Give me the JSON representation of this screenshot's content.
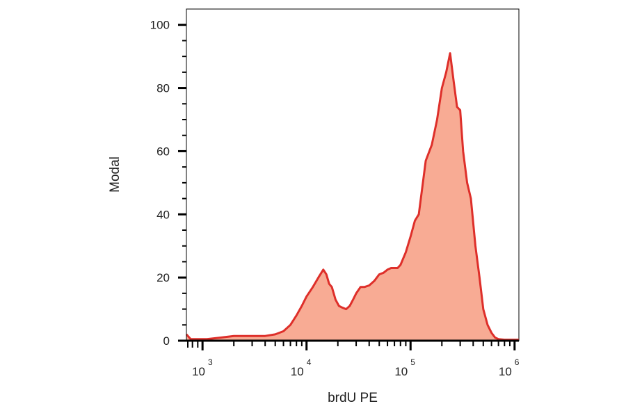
{
  "chart_data": {
    "type": "area",
    "xlabel": "brdU PE",
    "ylabel": "Modal",
    "x_scale": "log",
    "xlim": [
      700,
      1100000
    ],
    "ylim": [
      0,
      105
    ],
    "x_ticks": [
      {
        "base": "10",
        "exp": "3"
      },
      {
        "base": "10",
        "exp": "4"
      },
      {
        "base": "10",
        "exp": "5"
      },
      {
        "base": "10",
        "exp": "6"
      }
    ],
    "y_ticks": [
      "0",
      "20",
      "40",
      "60",
      "80",
      "100"
    ],
    "colors": {
      "fill": "#f8ab94",
      "line": "#de2f2a",
      "axis": "#000000"
    },
    "series": [
      {
        "x": [
          700,
          770,
          900,
          1100,
          1500,
          2000,
          2600,
          3000,
          4000,
          5000,
          6000,
          7000,
          8000,
          9000,
          10000,
          11500,
          13000,
          14500,
          15500,
          16500,
          17500,
          19000,
          20500,
          22000,
          24000,
          26000,
          28000,
          30000,
          33000,
          36000,
          40000,
          45000,
          50000,
          55000,
          60000,
          65000,
          70000,
          75000,
          80000,
          90000,
          100000,
          110000,
          120000,
          140000,
          160000,
          180000,
          200000,
          220000,
          240000,
          260000,
          280000,
          300000,
          320000,
          350000,
          380000,
          420000,
          460000,
          500000,
          550000,
          600000,
          650000,
          700000,
          800000,
          900000,
          1000000,
          1100000
        ],
        "y": [
          2,
          0.5,
          0.5,
          0.5,
          1,
          1.5,
          1.5,
          1.5,
          1.5,
          2,
          3,
          5,
          8,
          11,
          14,
          17,
          20,
          22.5,
          21,
          18,
          17,
          13,
          11,
          10.5,
          10,
          11,
          13,
          15,
          17,
          17,
          17.5,
          19,
          21,
          21.5,
          22.5,
          23,
          23,
          23,
          24,
          28,
          33,
          38,
          40,
          57,
          62,
          70,
          80,
          85,
          91,
          82,
          74,
          73,
          60,
          50,
          45,
          30,
          20,
          10,
          5,
          2.5,
          1,
          0.5,
          0.3,
          0.3,
          0.3,
          0.3
        ]
      }
    ]
  }
}
